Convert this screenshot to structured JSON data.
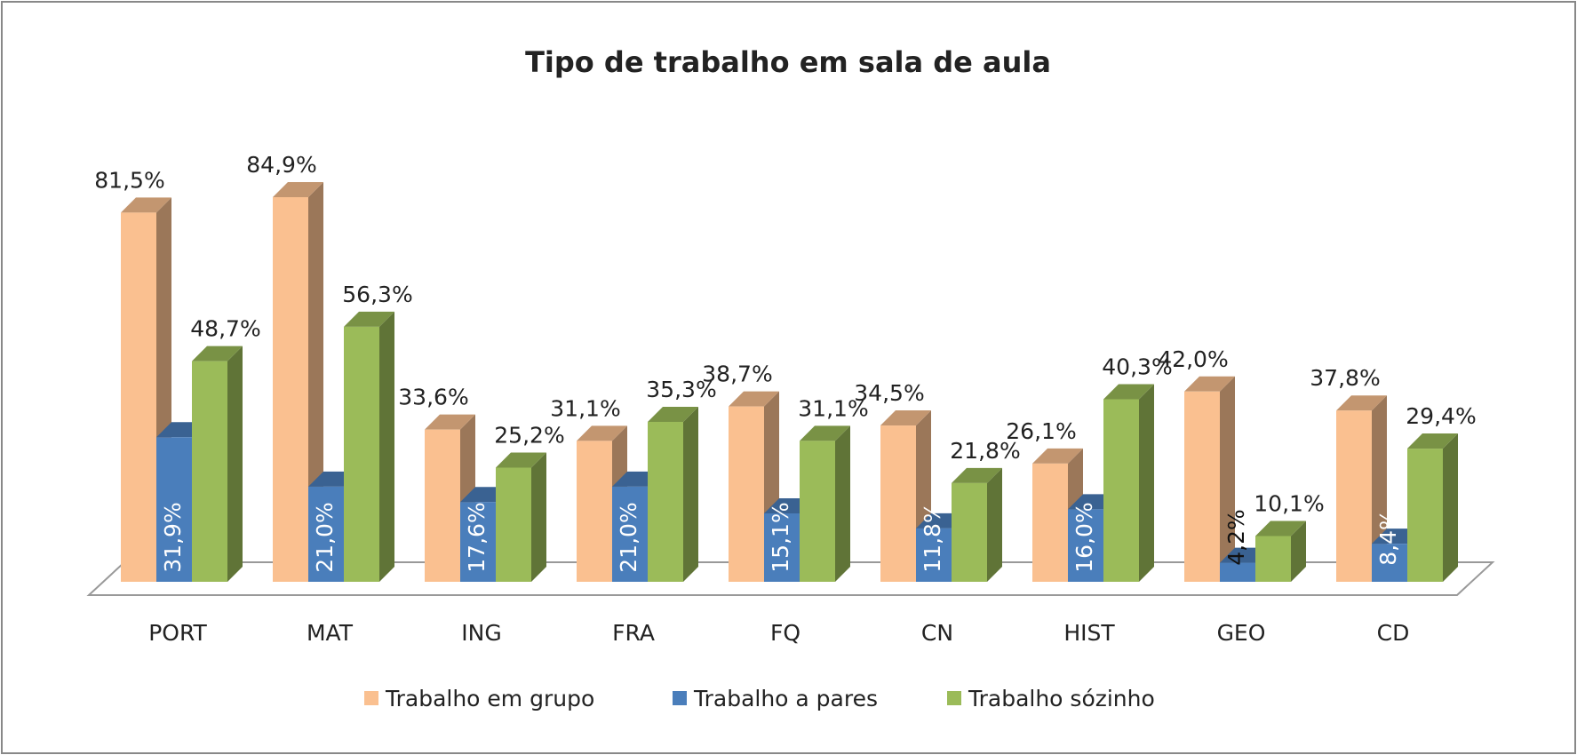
{
  "chart_data": {
    "type": "bar3d",
    "title": "Tipo de trabalho em sala de aula",
    "categories": [
      "PORT",
      "MAT",
      "ING",
      "FRA",
      "FQ",
      "CN",
      "HIST",
      "GEO",
      "CD"
    ],
    "series": [
      {
        "name": "Trabalho em grupo",
        "color": "#fac090",
        "values": [
          81.5,
          84.9,
          33.6,
          31.1,
          38.7,
          34.5,
          26.1,
          42.0,
          37.8
        ],
        "value_labels": [
          "81,5%",
          "84,9%",
          "33,6%",
          "31,1%",
          "38,7%",
          "34,5%",
          "26,1%",
          "42,0%",
          "37,8%"
        ]
      },
      {
        "name": "Trabalho a pares",
        "color": "#4a7ebb",
        "values": [
          31.9,
          21.0,
          17.6,
          21.0,
          15.1,
          11.8,
          16.0,
          4.2,
          8.4
        ],
        "value_labels": [
          "31,9%",
          "21,0%",
          "17,6%",
          "21,0%",
          "15,1%",
          "11,8%",
          "16,0%",
          "4,2%",
          "8,4%"
        ]
      },
      {
        "name": "Trabalho sózinho",
        "color": "#9bbb59",
        "values": [
          48.7,
          56.3,
          25.2,
          35.3,
          31.1,
          21.8,
          40.3,
          10.1,
          29.4
        ],
        "value_labels": [
          "48,7%",
          "56,3%",
          "25,2%",
          "35,3%",
          "31,1%",
          "21,8%",
          "40,3%",
          "10,1%",
          "29,4%"
        ]
      }
    ],
    "legend": "bottom"
  }
}
